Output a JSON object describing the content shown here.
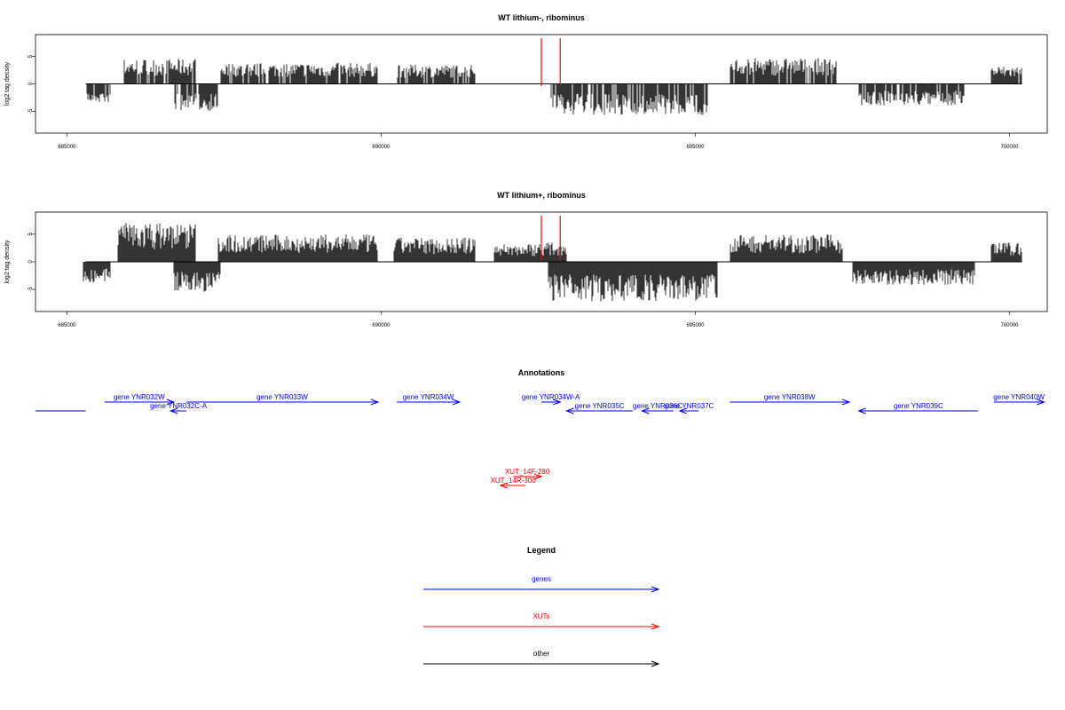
{
  "chart_data": [
    {
      "type": "bar",
      "title": "WT lithium-, ribominus",
      "ylabel": "log2 tag density",
      "xlim": [
        684500,
        700600
      ],
      "ylim": [
        -9,
        9
      ],
      "x_ticks": [
        685000,
        690000,
        695000,
        700000
      ],
      "x_tick_labels": [
        "685000",
        "690000",
        "695000",
        "700000"
      ],
      "y_ticks": [
        -5,
        0,
        5
      ],
      "y_tick_labels": [
        "-5",
        "0",
        "5"
      ],
      "highlights": [
        692550,
        692850
      ],
      "highlight_color": "#ff0000",
      "series": [
        {
          "values_sampled": true,
          "segments": [
            {
              "start": 685300,
              "end": 685700,
              "strand": "-",
              "level": 3.2
            },
            {
              "start": 685900,
              "end": 687050,
              "strand": "+",
              "level": 4.2
            },
            {
              "start": 686700,
              "end": 687400,
              "strand": "-",
              "level": 4.5
            },
            {
              "start": 687450,
              "end": 689950,
              "strand": "+",
              "level": 3.5
            },
            {
              "start": 690250,
              "end": 691500,
              "strand": "+",
              "level": 3.2
            },
            {
              "start": 692700,
              "end": 695200,
              "strand": "-",
              "level": 5.2
            },
            {
              "start": 695550,
              "end": 697250,
              "strand": "+",
              "level": 4.3
            },
            {
              "start": 697600,
              "end": 699300,
              "strand": "-",
              "level": 3.6
            },
            {
              "start": 699700,
              "end": 700200,
              "strand": "+",
              "level": 3.0
            }
          ]
        }
      ]
    },
    {
      "type": "bar",
      "title": "WT lithium+, ribominus",
      "ylabel": "log2 tag density",
      "xlim": [
        684500,
        700600
      ],
      "ylim": [
        -9,
        9
      ],
      "x_ticks": [
        685000,
        690000,
        695000,
        700000
      ],
      "x_tick_labels": [
        "685000",
        "690000",
        "695000",
        "700000"
      ],
      "y_ticks": [
        -5,
        0,
        5
      ],
      "y_tick_labels": [
        "-5",
        "0",
        "5"
      ],
      "highlights": [
        692550,
        692850
      ],
      "highlight_color": "#ff0000",
      "series": [
        {
          "values_sampled": true,
          "segments": [
            {
              "start": 685250,
              "end": 685700,
              "strand": "-",
              "level": 3.5
            },
            {
              "start": 685800,
              "end": 687050,
              "strand": "+",
              "level": 6.5
            },
            {
              "start": 686700,
              "end": 687450,
              "strand": "-",
              "level": 5.0
            },
            {
              "start": 687400,
              "end": 689950,
              "strand": "+",
              "level": 4.5
            },
            {
              "start": 690200,
              "end": 691500,
              "strand": "+",
              "level": 4.0
            },
            {
              "start": 691800,
              "end": 692450,
              "strand": "+",
              "level": 3.0
            },
            {
              "start": 692450,
              "end": 692950,
              "strand": "+",
              "level": 3.2
            },
            {
              "start": 692650,
              "end": 695350,
              "strand": "-",
              "level": 6.5
            },
            {
              "start": 695550,
              "end": 697350,
              "strand": "+",
              "level": 4.5
            },
            {
              "start": 697500,
              "end": 699450,
              "strand": "-",
              "level": 3.8
            },
            {
              "start": 699700,
              "end": 700200,
              "strand": "+",
              "level": 3.2
            }
          ]
        }
      ]
    },
    {
      "type": "annotation-track",
      "title": "Annotations",
      "features": [
        {
          "label": "",
          "kind": "gene",
          "start": 684500,
          "end": 685300,
          "strand": "-",
          "row": 1
        },
        {
          "label": "gene YNR032W",
          "kind": "gene",
          "start": 685600,
          "end": 686700,
          "strand": "+",
          "row": 0
        },
        {
          "label": "gene YNR032C-A",
          "kind": "gene",
          "start": 686650,
          "end": 686900,
          "strand": "-",
          "row": 1
        },
        {
          "label": "gene YNR033W",
          "kind": "gene",
          "start": 686900,
          "end": 689950,
          "strand": "+",
          "row": 0
        },
        {
          "label": "gene YNR034W",
          "kind": "gene",
          "start": 690250,
          "end": 691250,
          "strand": "+",
          "row": 0
        },
        {
          "label": "gene YNR034W-A",
          "kind": "gene",
          "start": 692550,
          "end": 692850,
          "strand": "+",
          "row": 0
        },
        {
          "label": "gene YNR035C",
          "kind": "gene",
          "start": 692950,
          "end": 694000,
          "strand": "-",
          "row": 1
        },
        {
          "label": "gene YNR036C",
          "kind": "gene",
          "start": 694150,
          "end": 694650,
          "strand": "-",
          "row": 1
        },
        {
          "label": "gene YNR037C",
          "kind": "gene",
          "start": 694750,
          "end": 695050,
          "strand": "-",
          "row": 1
        },
        {
          "label": "gene YNR038W",
          "kind": "gene",
          "start": 695550,
          "end": 697450,
          "strand": "+",
          "row": 0
        },
        {
          "label": "gene YNR039C",
          "kind": "gene",
          "start": 697600,
          "end": 699500,
          "strand": "-",
          "row": 1
        },
        {
          "label": "gene YNR040W",
          "kind": "gene",
          "start": 699750,
          "end": 700550,
          "strand": "+",
          "row": 0
        },
        {
          "label": "XUT_14F-280",
          "kind": "xut",
          "start": 692100,
          "end": 692550,
          "strand": "+",
          "row": 0
        },
        {
          "label": "XUT_14R-300",
          "kind": "xut",
          "start": 691900,
          "end": 692300,
          "strand": "-",
          "row": 1
        }
      ]
    },
    {
      "type": "legend",
      "title": "Legend",
      "entries": [
        {
          "label": "genes",
          "color": "#0000ff"
        },
        {
          "label": "XUTs",
          "color": "#ff0000"
        },
        {
          "label": "other",
          "color": "#000000"
        }
      ]
    }
  ]
}
